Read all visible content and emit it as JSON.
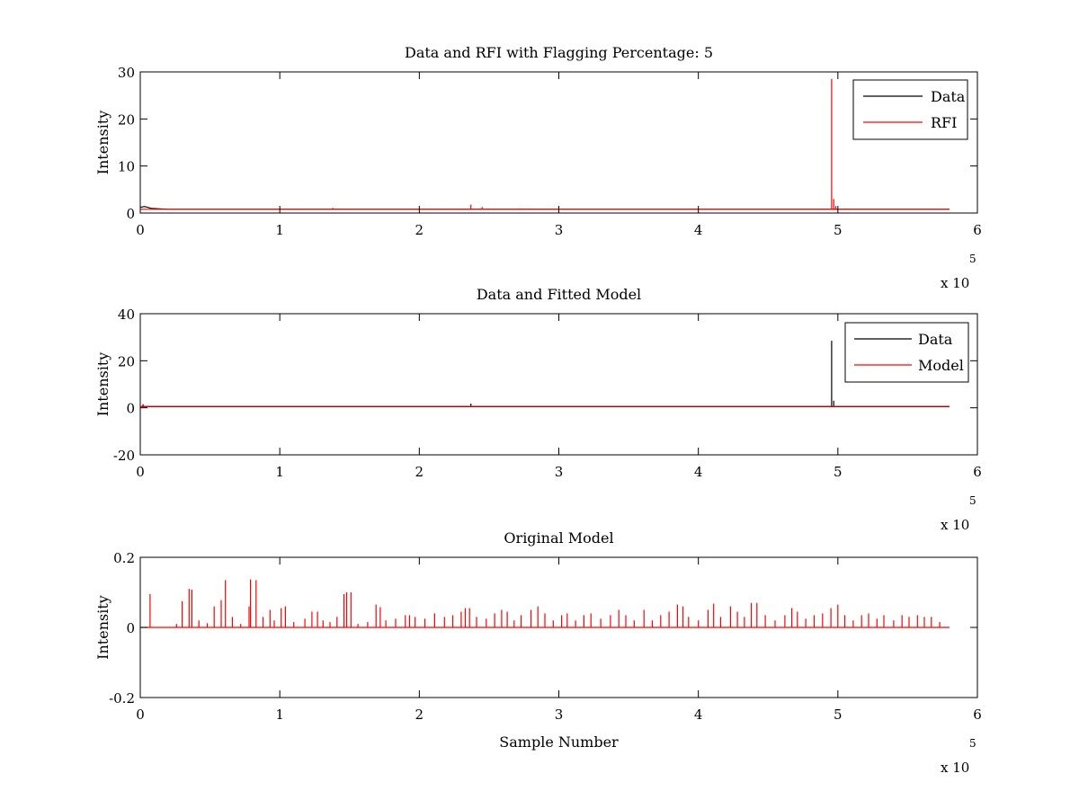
{
  "chart_data": [
    {
      "type": "line",
      "title": "Data and RFI with Flagging Percentage: 5",
      "xlabel": "",
      "ylabel": "Intensity",
      "xlim": [
        0,
        600000
      ],
      "ylim": [
        0,
        30
      ],
      "xticks": [
        "0",
        "1",
        "2",
        "3",
        "4",
        "5",
        "6"
      ],
      "yticks": [
        "0",
        "10",
        "20",
        "30"
      ],
      "x_multiplier": {
        "base": "x 10",
        "exponent": "5"
      },
      "legend": {
        "position": "top-right",
        "entries": [
          {
            "name": "Data",
            "color": "#000000"
          },
          {
            "name": "RFI",
            "color": "#ff0000"
          }
        ]
      },
      "series": [
        {
          "name": "Data",
          "color": "#000000",
          "baseline": 0.8,
          "points": [
            [
              0,
              1.2
            ],
            [
              3000,
              1.4
            ],
            [
              8000,
              1.0
            ],
            [
              20000,
              0.8
            ],
            [
              580000,
              0.8
            ]
          ]
        },
        {
          "name": "RFI",
          "color": "#ff0000",
          "baseline": 0.8,
          "spikes": [
            [
              138000,
              1.1
            ],
            [
              237000,
              1.8
            ],
            [
              245000,
              1.3
            ],
            [
              272000,
              1.0
            ],
            [
              495500,
              28.5
            ],
            [
              497000,
              3.0
            ],
            [
              498500,
              1.5
            ]
          ]
        }
      ]
    },
    {
      "type": "line",
      "title": "Data and Fitted Model",
      "xlabel": "",
      "ylabel": "Intensity",
      "xlim": [
        0,
        600000
      ],
      "ylim": [
        -20,
        40
      ],
      "xticks": [
        "0",
        "1",
        "2",
        "3",
        "4",
        "5",
        "6"
      ],
      "yticks": [
        "-20",
        "0",
        "20",
        "40"
      ],
      "x_multiplier": {
        "base": "x 10",
        "exponent": "5"
      },
      "legend": {
        "position": "top-right",
        "entries": [
          {
            "name": "Data",
            "color": "#000000"
          },
          {
            "name": "Model",
            "color": "#ff0000"
          }
        ]
      },
      "series": [
        {
          "name": "Data",
          "color": "#000000",
          "baseline": 0.5,
          "spikes": [
            [
              2000,
              1.5
            ],
            [
              237000,
              1.8
            ],
            [
              495500,
              28.5
            ],
            [
              497000,
              3.0
            ]
          ]
        },
        {
          "name": "Model",
          "color": "#ff0000",
          "baseline": 0.6,
          "spikes": []
        }
      ]
    },
    {
      "type": "line",
      "title": "Original Model",
      "xlabel": "Sample Number",
      "ylabel": "Intensity",
      "xlim": [
        0,
        600000
      ],
      "ylim": [
        -0.2,
        0.2
      ],
      "xticks": [
        "0",
        "1",
        "2",
        "3",
        "4",
        "5",
        "6"
      ],
      "yticks": [
        "-0.2",
        "0",
        "0.2"
      ],
      "x_multiplier": {
        "base": "x 10",
        "exponent": "5"
      },
      "series": [
        {
          "name": "Model",
          "color": "#ff0000",
          "baseline": 0.0,
          "spikes": [
            [
              7000,
              0.095
            ],
            [
              26000,
              0.01
            ],
            [
              30000,
              0.075
            ],
            [
              35000,
              0.11
            ],
            [
              37000,
              0.108
            ],
            [
              42000,
              0.02
            ],
            [
              48000,
              0.012
            ],
            [
              53000,
              0.06
            ],
            [
              58000,
              0.078
            ],
            [
              61000,
              0.135
            ],
            [
              66000,
              0.03
            ],
            [
              72000,
              0.01
            ],
            [
              78000,
              0.06
            ],
            [
              79000,
              0.137
            ],
            [
              83000,
              0.135
            ],
            [
              88000,
              0.03
            ],
            [
              93000,
              0.05
            ],
            [
              96000,
              0.02
            ],
            [
              101000,
              0.055
            ],
            [
              104000,
              0.06
            ],
            [
              110000,
              0.015
            ],
            [
              118000,
              0.025
            ],
            [
              123000,
              0.045
            ],
            [
              127000,
              0.045
            ],
            [
              131000,
              0.02
            ],
            [
              136000,
              0.015
            ],
            [
              141000,
              0.03
            ],
            [
              146000,
              0.095
            ],
            [
              148000,
              0.1
            ],
            [
              151000,
              0.1
            ],
            [
              156000,
              0.01
            ],
            [
              163000,
              0.015
            ],
            [
              169000,
              0.065
            ],
            [
              172000,
              0.058
            ],
            [
              176000,
              0.02
            ],
            [
              183000,
              0.025
            ],
            [
              190000,
              0.035
            ],
            [
              193000,
              0.035
            ],
            [
              197000,
              0.03
            ],
            [
              204000,
              0.025
            ],
            [
              211000,
              0.04
            ],
            [
              218000,
              0.03
            ],
            [
              224000,
              0.035
            ],
            [
              230000,
              0.045
            ],
            [
              233000,
              0.055
            ],
            [
              236000,
              0.055
            ],
            [
              241000,
              0.03
            ],
            [
              248000,
              0.025
            ],
            [
              254000,
              0.04
            ],
            [
              259000,
              0.05
            ],
            [
              263000,
              0.045
            ],
            [
              268000,
              0.02
            ],
            [
              273000,
              0.035
            ],
            [
              280000,
              0.05
            ],
            [
              285000,
              0.06
            ],
            [
              290000,
              0.04
            ],
            [
              296000,
              0.02
            ],
            [
              302000,
              0.035
            ],
            [
              306000,
              0.04
            ],
            [
              312000,
              0.02
            ],
            [
              318000,
              0.035
            ],
            [
              323000,
              0.04
            ],
            [
              330000,
              0.025
            ],
            [
              337000,
              0.035
            ],
            [
              343000,
              0.05
            ],
            [
              348000,
              0.035
            ],
            [
              354000,
              0.02
            ],
            [
              361000,
              0.05
            ],
            [
              367000,
              0.02
            ],
            [
              373000,
              0.035
            ],
            [
              379000,
              0.045
            ],
            [
              385000,
              0.065
            ],
            [
              389000,
              0.06
            ],
            [
              393000,
              0.03
            ],
            [
              400000,
              0.02
            ],
            [
              407000,
              0.05
            ],
            [
              411000,
              0.068
            ],
            [
              416000,
              0.03
            ],
            [
              423000,
              0.06
            ],
            [
              428000,
              0.045
            ],
            [
              433000,
              0.03
            ],
            [
              438000,
              0.07
            ],
            [
              442000,
              0.07
            ],
            [
              448000,
              0.035
            ],
            [
              455000,
              0.02
            ],
            [
              462000,
              0.035
            ],
            [
              467000,
              0.055
            ],
            [
              471000,
              0.045
            ],
            [
              477000,
              0.025
            ],
            [
              483000,
              0.035
            ],
            [
              489000,
              0.04
            ],
            [
              495000,
              0.055
            ],
            [
              500000,
              0.065
            ],
            [
              505000,
              0.035
            ],
            [
              511000,
              0.02
            ],
            [
              517000,
              0.035
            ],
            [
              522000,
              0.04
            ],
            [
              528000,
              0.025
            ],
            [
              533000,
              0.035
            ],
            [
              540000,
              0.02
            ],
            [
              546000,
              0.035
            ],
            [
              551000,
              0.03
            ],
            [
              557000,
              0.035
            ],
            [
              562000,
              0.03
            ],
            [
              567000,
              0.03
            ],
            [
              573000,
              0.015
            ]
          ]
        }
      ]
    }
  ]
}
